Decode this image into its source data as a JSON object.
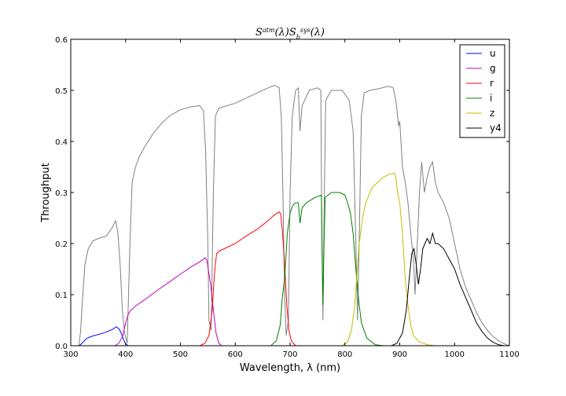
{
  "chart_data": {
    "type": "line",
    "title": "S^{atm}(λ)S_b^{sys}(λ)",
    "xlabel": "Wavelength, λ (nm)",
    "ylabel": "Throughput",
    "xlim": [
      300,
      1100
    ],
    "ylim": [
      0.0,
      0.6
    ],
    "x_ticks": [
      300,
      400,
      500,
      600,
      700,
      800,
      900,
      1000,
      1100
    ],
    "y_ticks": [
      0.0,
      0.1,
      0.2,
      0.3,
      0.4,
      0.5,
      0.6
    ],
    "x_tick_labels": [
      "300",
      "400",
      "500",
      "600",
      "700",
      "800",
      "900",
      "1000",
      "1100"
    ],
    "y_tick_labels": [
      "0.0",
      "0.1",
      "0.2",
      "0.3",
      "0.4",
      "0.5",
      "0.6"
    ],
    "grid": false,
    "legend_position": "top-right",
    "series": [
      {
        "name": "u",
        "color": "#0000ff",
        "in_legend": true,
        "points": [
          [
            315,
            0.0
          ],
          [
            320,
            0.004
          ],
          [
            325,
            0.01
          ],
          [
            330,
            0.015
          ],
          [
            340,
            0.019
          ],
          [
            350,
            0.022
          ],
          [
            360,
            0.025
          ],
          [
            370,
            0.029
          ],
          [
            378,
            0.033
          ],
          [
            383,
            0.037
          ],
          [
            388,
            0.033
          ],
          [
            392,
            0.025
          ],
          [
            396,
            0.012
          ],
          [
            400,
            0.004
          ],
          [
            405,
            0.0
          ]
        ]
      },
      {
        "name": "g",
        "color": "#bf00bf",
        "in_legend": true,
        "points": [
          [
            380,
            0.0
          ],
          [
            388,
            0.005
          ],
          [
            395,
            0.02
          ],
          [
            400,
            0.045
          ],
          [
            405,
            0.062
          ],
          [
            410,
            0.07
          ],
          [
            420,
            0.079
          ],
          [
            440,
            0.094
          ],
          [
            460,
            0.11
          ],
          [
            480,
            0.125
          ],
          [
            500,
            0.14
          ],
          [
            520,
            0.155
          ],
          [
            535,
            0.164
          ],
          [
            540,
            0.168
          ],
          [
            545,
            0.172
          ],
          [
            548,
            0.168
          ],
          [
            550,
            0.155
          ],
          [
            555,
            0.12
          ],
          [
            560,
            0.07
          ],
          [
            565,
            0.025
          ],
          [
            570,
            0.005
          ],
          [
            575,
            0.0
          ]
        ]
      },
      {
        "name": "r",
        "color": "#ff0000",
        "in_legend": true,
        "points": [
          [
            535,
            0.0
          ],
          [
            545,
            0.005
          ],
          [
            552,
            0.02
          ],
          [
            558,
            0.07
          ],
          [
            562,
            0.14
          ],
          [
            566,
            0.18
          ],
          [
            570,
            0.185
          ],
          [
            580,
            0.19
          ],
          [
            600,
            0.2
          ],
          [
            620,
            0.215
          ],
          [
            640,
            0.228
          ],
          [
            660,
            0.245
          ],
          [
            670,
            0.255
          ],
          [
            680,
            0.262
          ],
          [
            683,
            0.258
          ],
          [
            686,
            0.225
          ],
          [
            690,
            0.16
          ],
          [
            694,
            0.08
          ],
          [
            698,
            0.03
          ],
          [
            702,
            0.01
          ],
          [
            710,
            0.0
          ]
        ]
      },
      {
        "name": "i",
        "color": "#008000",
        "in_legend": true,
        "points": [
          [
            665,
            0.0
          ],
          [
            675,
            0.01
          ],
          [
            682,
            0.04
          ],
          [
            686,
            0.095
          ],
          [
            690,
            0.13
          ],
          [
            695,
            0.22
          ],
          [
            700,
            0.26
          ],
          [
            705,
            0.275
          ],
          [
            710,
            0.28
          ],
          [
            715,
            0.28
          ],
          [
            718,
            0.24
          ],
          [
            722,
            0.27
          ],
          [
            730,
            0.28
          ],
          [
            745,
            0.29
          ],
          [
            757,
            0.295
          ],
          [
            759,
            0.15
          ],
          [
            760,
            0.08
          ],
          [
            762,
            0.2
          ],
          [
            764,
            0.29
          ],
          [
            775,
            0.3
          ],
          [
            790,
            0.3
          ],
          [
            800,
            0.295
          ],
          [
            805,
            0.28
          ],
          [
            810,
            0.26
          ],
          [
            815,
            0.22
          ],
          [
            820,
            0.15
          ],
          [
            825,
            0.09
          ],
          [
            830,
            0.045
          ],
          [
            840,
            0.015
          ],
          [
            855,
            0.002
          ],
          [
            870,
            0.0
          ]
        ]
      },
      {
        "name": "z",
        "color": "#bfbf00",
        "in_legend": true,
        "points": [
          [
            795,
            0.0
          ],
          [
            805,
            0.008
          ],
          [
            812,
            0.03
          ],
          [
            818,
            0.08
          ],
          [
            822,
            0.14
          ],
          [
            826,
            0.2
          ],
          [
            832,
            0.25
          ],
          [
            838,
            0.28
          ],
          [
            845,
            0.298
          ],
          [
            850,
            0.31
          ],
          [
            860,
            0.32
          ],
          [
            870,
            0.33
          ],
          [
            880,
            0.335
          ],
          [
            890,
            0.338
          ],
          [
            893,
            0.33
          ],
          [
            896,
            0.3
          ],
          [
            900,
            0.28
          ],
          [
            905,
            0.22
          ],
          [
            910,
            0.13
          ],
          [
            915,
            0.08
          ],
          [
            920,
            0.04
          ],
          [
            925,
            0.02
          ],
          [
            935,
            0.008
          ],
          [
            950,
            0.002
          ],
          [
            965,
            0.0
          ]
        ]
      },
      {
        "name": "y4",
        "color": "#000000",
        "in_legend": true,
        "points": [
          [
            885,
            0.0
          ],
          [
            895,
            0.005
          ],
          [
            905,
            0.025
          ],
          [
            912,
            0.07
          ],
          [
            918,
            0.14
          ],
          [
            922,
            0.18
          ],
          [
            926,
            0.19
          ],
          [
            930,
            0.16
          ],
          [
            934,
            0.12
          ],
          [
            938,
            0.15
          ],
          [
            942,
            0.19
          ],
          [
            946,
            0.2
          ],
          [
            950,
            0.21
          ],
          [
            955,
            0.2
          ],
          [
            960,
            0.22
          ],
          [
            965,
            0.2
          ],
          [
            970,
            0.2
          ],
          [
            980,
            0.19
          ],
          [
            990,
            0.17
          ],
          [
            1000,
            0.15
          ],
          [
            1010,
            0.12
          ],
          [
            1020,
            0.095
          ],
          [
            1030,
            0.07
          ],
          [
            1040,
            0.045
          ],
          [
            1050,
            0.028
          ],
          [
            1060,
            0.015
          ],
          [
            1070,
            0.007
          ],
          [
            1080,
            0.002
          ],
          [
            1090,
            0.0
          ]
        ]
      },
      {
        "name": "",
        "color": "#808080",
        "in_legend": false,
        "points": [
          [
            315,
            0.0
          ],
          [
            318,
            0.03
          ],
          [
            322,
            0.1
          ],
          [
            326,
            0.16
          ],
          [
            332,
            0.19
          ],
          [
            340,
            0.205
          ],
          [
            350,
            0.21
          ],
          [
            365,
            0.215
          ],
          [
            375,
            0.23
          ],
          [
            382,
            0.245
          ],
          [
            386,
            0.22
          ],
          [
            390,
            0.16
          ],
          [
            394,
            0.07
          ],
          [
            398,
            0.025
          ],
          [
            403,
            0.005
          ],
          [
            408,
            0.2
          ],
          [
            412,
            0.32
          ],
          [
            418,
            0.35
          ],
          [
            425,
            0.37
          ],
          [
            435,
            0.39
          ],
          [
            450,
            0.415
          ],
          [
            465,
            0.435
          ],
          [
            480,
            0.45
          ],
          [
            500,
            0.462
          ],
          [
            520,
            0.468
          ],
          [
            535,
            0.47
          ],
          [
            542,
            0.46
          ],
          [
            546,
            0.38
          ],
          [
            550,
            0.2
          ],
          [
            552,
            0.05
          ],
          [
            556,
            0.03
          ],
          [
            560,
            0.3
          ],
          [
            564,
            0.45
          ],
          [
            570,
            0.465
          ],
          [
            585,
            0.47
          ],
          [
            600,
            0.475
          ],
          [
            620,
            0.485
          ],
          [
            640,
            0.495
          ],
          [
            660,
            0.505
          ],
          [
            672,
            0.51
          ],
          [
            680,
            0.505
          ],
          [
            684,
            0.45
          ],
          [
            687,
            0.3
          ],
          [
            690,
            0.1
          ],
          [
            693,
            0.02
          ],
          [
            697,
            0.05
          ],
          [
            700,
            0.3
          ],
          [
            704,
            0.45
          ],
          [
            710,
            0.5
          ],
          [
            715,
            0.505
          ],
          [
            718,
            0.42
          ],
          [
            722,
            0.47
          ],
          [
            735,
            0.5
          ],
          [
            750,
            0.505
          ],
          [
            756,
            0.5
          ],
          [
            758,
            0.2
          ],
          [
            760,
            0.05
          ],
          [
            762,
            0.25
          ],
          [
            765,
            0.48
          ],
          [
            775,
            0.5
          ],
          [
            795,
            0.5
          ],
          [
            808,
            0.48
          ],
          [
            815,
            0.42
          ],
          [
            820,
            0.2
          ],
          [
            823,
            0.05
          ],
          [
            826,
            0.2
          ],
          [
            830,
            0.45
          ],
          [
            835,
            0.495
          ],
          [
            845,
            0.5
          ],
          [
            860,
            0.503
          ],
          [
            880,
            0.508
          ],
          [
            888,
            0.505
          ],
          [
            893,
            0.48
          ],
          [
            896,
            0.45
          ],
          [
            898,
            0.43
          ],
          [
            900,
            0.44
          ],
          [
            905,
            0.35
          ],
          [
            910,
            0.32
          ],
          [
            915,
            0.28
          ],
          [
            920,
            0.22
          ],
          [
            925,
            0.17
          ],
          [
            928,
            0.1
          ],
          [
            932,
            0.2
          ],
          [
            936,
            0.3
          ],
          [
            940,
            0.36
          ],
          [
            945,
            0.3
          ],
          [
            950,
            0.33
          ],
          [
            955,
            0.35
          ],
          [
            960,
            0.36
          ],
          [
            965,
            0.32
          ],
          [
            970,
            0.3
          ],
          [
            980,
            0.28
          ],
          [
            990,
            0.25
          ],
          [
            1000,
            0.2
          ],
          [
            1010,
            0.15
          ],
          [
            1020,
            0.115
          ],
          [
            1030,
            0.09
          ],
          [
            1040,
            0.065
          ],
          [
            1050,
            0.045
          ],
          [
            1060,
            0.03
          ],
          [
            1070,
            0.018
          ],
          [
            1080,
            0.01
          ],
          [
            1090,
            0.004
          ],
          [
            1100,
            0.0
          ]
        ]
      }
    ]
  }
}
